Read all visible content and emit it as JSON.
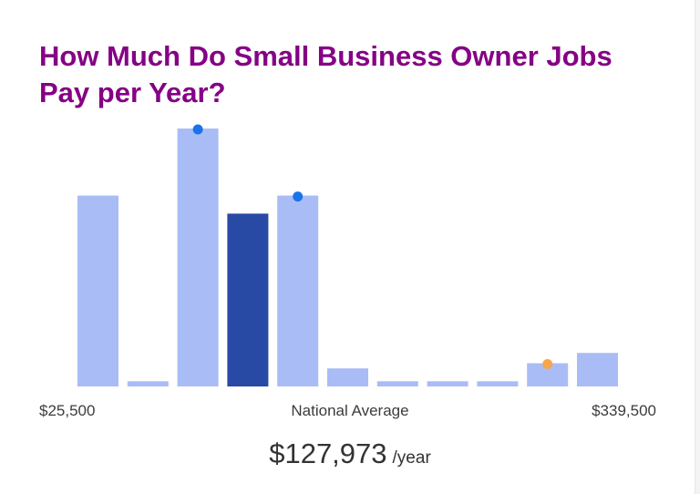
{
  "chart_data": {
    "type": "bar",
    "title": "How Much Do Small Business Owner Jobs Pay per Year?",
    "values": [
      74,
      2,
      100,
      67,
      74,
      7,
      2,
      2,
      2,
      9,
      13
    ],
    "highlight_index": 3,
    "markers": [
      {
        "bar": 2,
        "color": "#1a73e8"
      },
      {
        "bar": 4,
        "color": "#1a73e8"
      },
      {
        "bar": 9,
        "color": "#f6a54b"
      }
    ],
    "x_min_label": "$25,500",
    "x_mid_label": "National Average",
    "x_max_label": "$339,500",
    "colors": {
      "bar": "#a9bcf5",
      "highlight": "#2849a4",
      "title": "#850185"
    },
    "grid": false
  },
  "summary": {
    "value": "$127,973",
    "unit": "/year"
  }
}
